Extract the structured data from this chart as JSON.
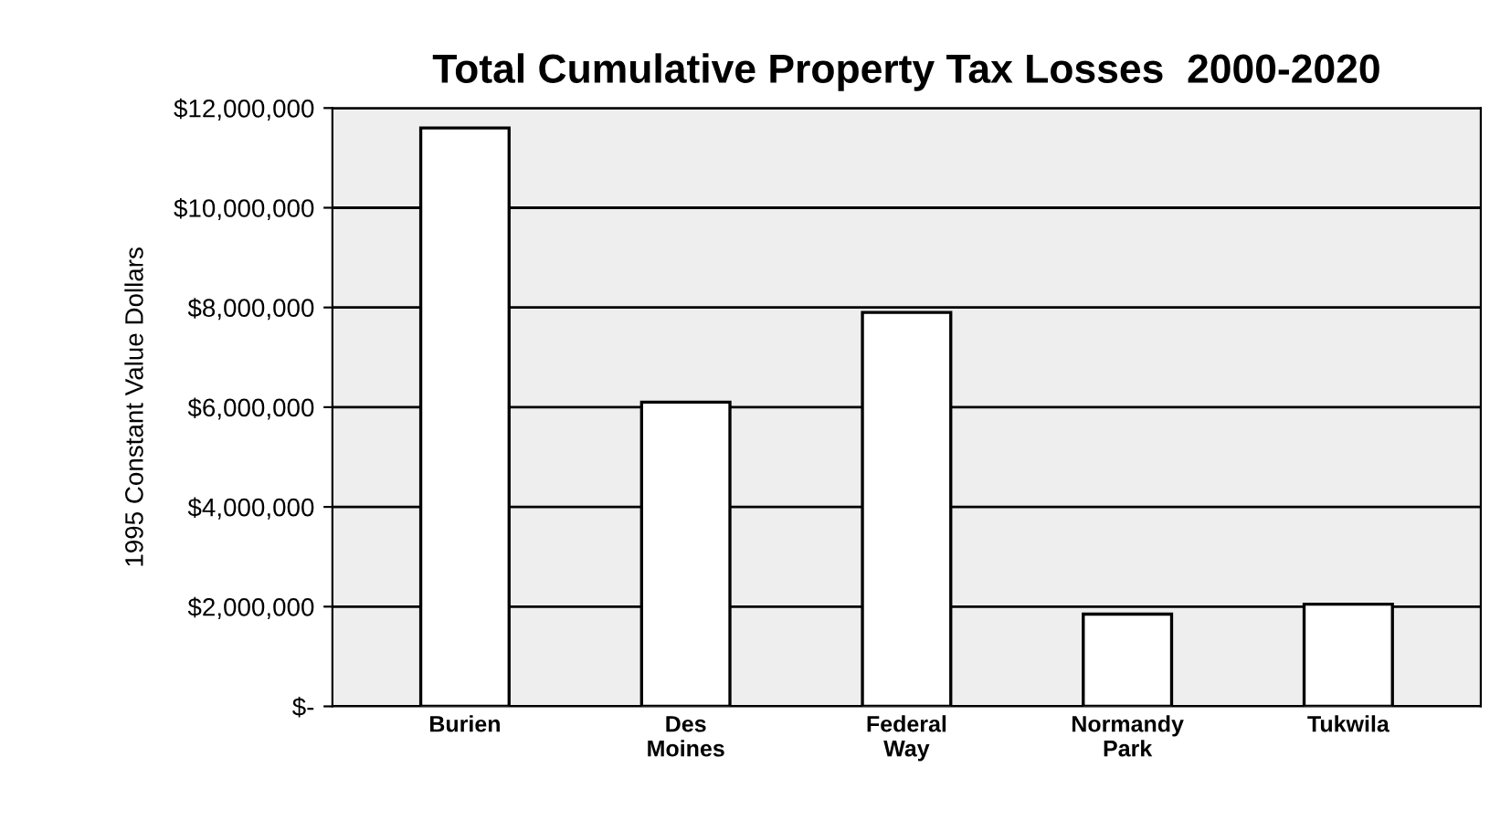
{
  "chart_data": {
    "type": "bar",
    "title": "Total Cumulative Property Tax Losses  2000-2020",
    "ylabel": "1995 Constant Value Dollars",
    "categories": [
      "Burien",
      "Des\nMoines",
      "Federal\nWay",
      "Normandy\nPark",
      "Tukwila"
    ],
    "values": [
      11600000,
      6100000,
      7900000,
      1850000,
      2050000
    ],
    "color": "#ffffff",
    "ylim": [
      0,
      12000000
    ],
    "yticks": [
      {
        "value": 0,
        "label": "$-"
      },
      {
        "value": 2000000,
        "label": "$2,000,000"
      },
      {
        "value": 4000000,
        "label": "$4,000,000"
      },
      {
        "value": 6000000,
        "label": "$6,000,000"
      },
      {
        "value": 8000000,
        "label": "$8,000,000"
      },
      {
        "value": 10000000,
        "label": "$10,000,000"
      },
      {
        "value": 12000000,
        "label": "$12,000,000"
      }
    ],
    "grid": "y",
    "legend": false
  }
}
